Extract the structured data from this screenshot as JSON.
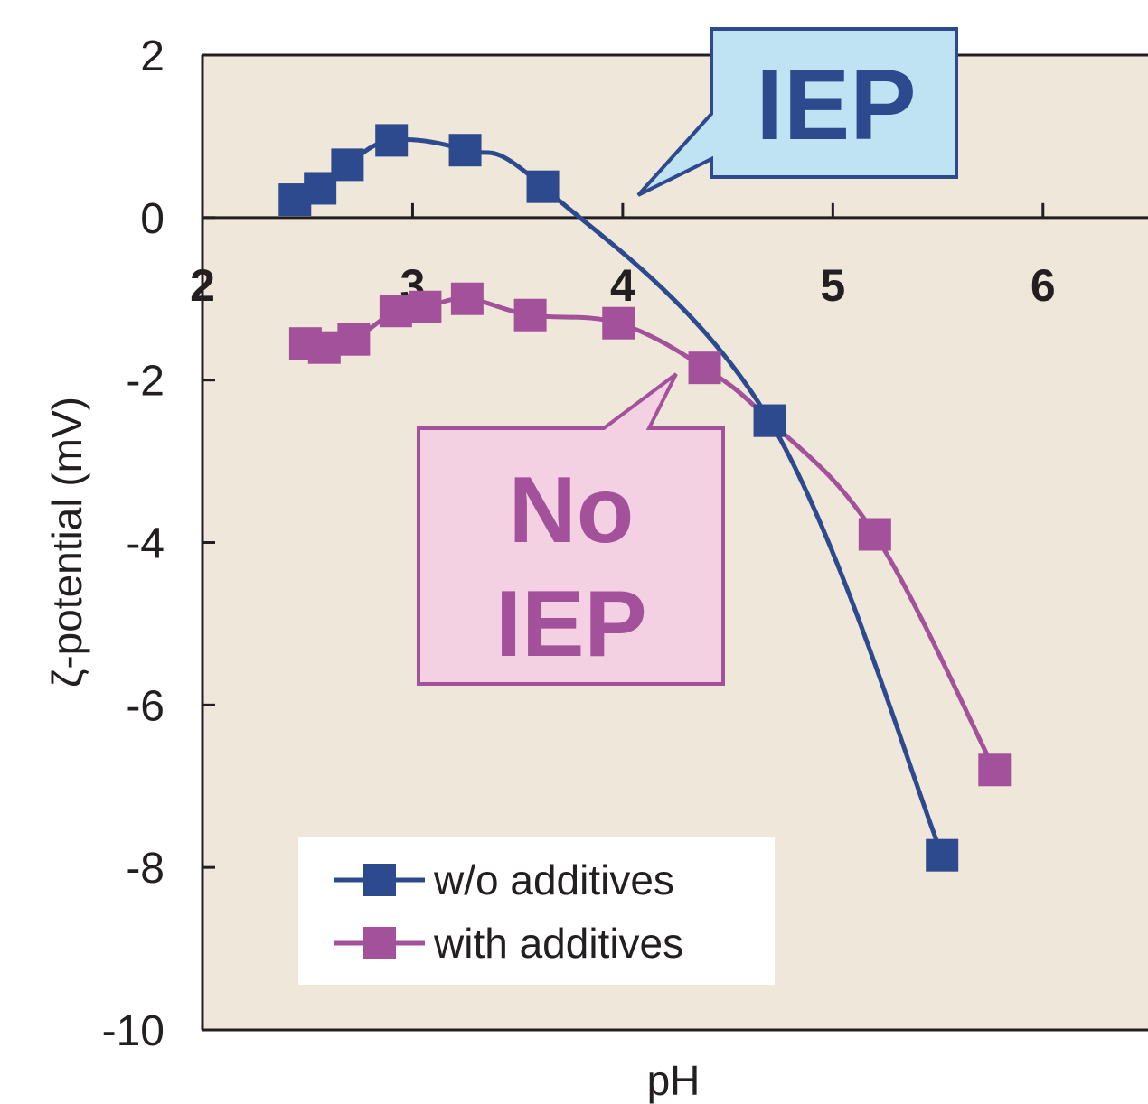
{
  "chart_data": {
    "type": "line",
    "xlabel": "pH",
    "ylabel": "ζ-potential (mV)",
    "xlim": [
      2,
      6.5
    ],
    "ylim": [
      -10,
      2
    ],
    "x_ticks": [
      "2",
      "3",
      "4",
      "5",
      "6"
    ],
    "y_ticks": [
      "2",
      "0",
      "-2",
      "-4",
      "-6",
      "-8",
      "-10"
    ],
    "grid": false,
    "legend_position": "bottom-left",
    "series": [
      {
        "name": "w/o additives",
        "color": "#2e4a8e",
        "marker": "square",
        "x": [
          2.44,
          2.56,
          2.69,
          2.9,
          3.25,
          3.62,
          4.7,
          5.52
        ],
        "y": [
          0.22,
          0.36,
          0.65,
          0.95,
          0.83,
          0.38,
          -2.5,
          -7.85
        ]
      },
      {
        "name": "with additives",
        "color": "#a3519b",
        "marker": "square",
        "x": [
          2.49,
          2.58,
          2.72,
          2.92,
          3.06,
          3.26,
          3.56,
          3.98,
          4.39,
          4.7,
          5.2,
          5.77
        ],
        "y": [
          -1.55,
          -1.6,
          -1.5,
          -1.15,
          -1.1,
          -1.0,
          -1.2,
          -1.3,
          -1.85,
          -2.5,
          -3.9,
          -6.8
        ]
      }
    ],
    "annotations": [
      {
        "text": "IEP",
        "color": "#2e4a8e",
        "fill": "#bfe3f2"
      },
      {
        "text": "No\nIEP",
        "lines": [
          "No",
          "IEP"
        ],
        "color": "#a3519b",
        "fill": "#f3d1e3"
      }
    ],
    "colors": {
      "plot_background": "#efe8da",
      "axis": "#231f20"
    }
  }
}
